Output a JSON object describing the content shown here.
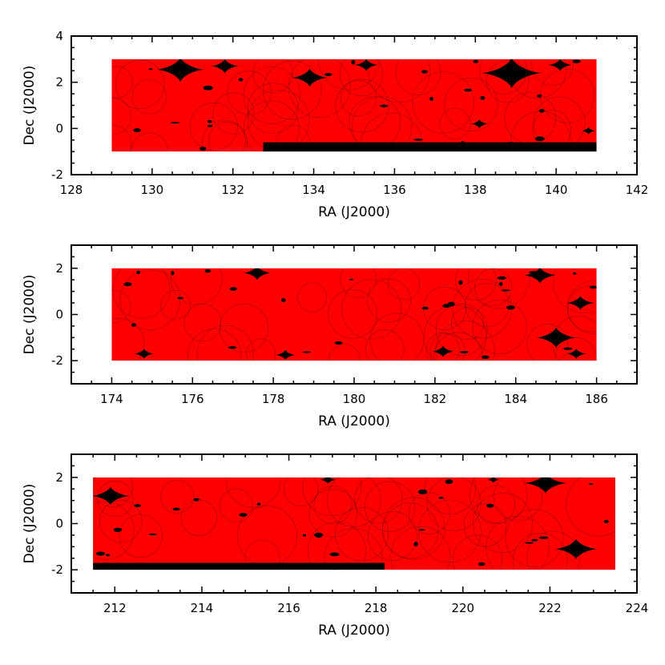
{
  "colors": {
    "coverage": "#ff0000",
    "gap": "#000000",
    "frame": "#000000",
    "background": "#ffffff"
  },
  "chart_data": [
    {
      "type": "scatter",
      "xlabel": "RA (J2000)",
      "ylabel": "Dec (J2000)",
      "xlim": [
        128,
        142
      ],
      "ylim": [
        -2,
        4
      ],
      "xticks": [
        128,
        130,
        132,
        134,
        136,
        138,
        140,
        142
      ],
      "yticks": [
        -2,
        0,
        2,
        4
      ],
      "field": {
        "ra": [
          129,
          141
        ],
        "dec": [
          -1,
          3
        ]
      },
      "gap_strips": [
        {
          "ra": [
            132.75,
            141
          ],
          "dec": [
            -1,
            -0.6
          ]
        }
      ],
      "gap_holes": [
        {
          "ra": 130.7,
          "dec": 2.55,
          "r": 0.6
        },
        {
          "ra": 131.8,
          "dec": 2.7,
          "r": 0.35
        },
        {
          "ra": 133.9,
          "dec": 2.2,
          "r": 0.45
        },
        {
          "ra": 135.3,
          "dec": 2.75,
          "r": 0.3
        },
        {
          "ra": 138.9,
          "dec": 2.4,
          "r": 0.75
        },
        {
          "ra": 140.1,
          "dec": 2.75,
          "r": 0.3
        },
        {
          "ra": 138.1,
          "dec": 0.2,
          "r": 0.22
        },
        {
          "ra": 140.8,
          "dec": -0.1,
          "r": 0.18
        }
      ]
    },
    {
      "type": "scatter",
      "xlabel": "RA (J2000)",
      "ylabel": "Dec (J2000)",
      "xlim": [
        173,
        187
      ],
      "ylim": [
        -3,
        3
      ],
      "xticks": [
        174,
        176,
        178,
        180,
        182,
        184,
        186
      ],
      "yticks": [
        -2,
        0,
        2
      ],
      "field": {
        "ra": [
          174,
          186
        ],
        "dec": [
          -2,
          2
        ]
      },
      "gap_strips": [],
      "gap_holes": [
        {
          "ra": 177.6,
          "dec": 1.8,
          "r": 0.35
        },
        {
          "ra": 184.6,
          "dec": 1.7,
          "r": 0.4
        },
        {
          "ra": 185.6,
          "dec": 0.5,
          "r": 0.35
        },
        {
          "ra": 185.0,
          "dec": -1.0,
          "r": 0.5
        },
        {
          "ra": 174.8,
          "dec": -1.7,
          "r": 0.25
        },
        {
          "ra": 178.3,
          "dec": -1.75,
          "r": 0.25
        },
        {
          "ra": 182.2,
          "dec": -1.6,
          "r": 0.28
        },
        {
          "ra": 185.5,
          "dec": -1.7,
          "r": 0.25
        }
      ]
    },
    {
      "type": "scatter",
      "xlabel": "RA (J2000)",
      "ylabel": "Dec (J2000)",
      "xlim": [
        211,
        224
      ],
      "ylim": [
        -3,
        3
      ],
      "xticks": [
        212,
        214,
        216,
        218,
        220,
        222,
        224
      ],
      "yticks": [
        -2,
        0,
        2
      ],
      "field": {
        "ra": [
          211.5,
          223.5
        ],
        "dec": [
          -2,
          2
        ]
      },
      "gap_strips": [
        {
          "ra": [
            211.5,
            218.2
          ],
          "dec": [
            -2,
            -1.7
          ]
        }
      ],
      "gap_holes": [
        {
          "ra": 211.9,
          "dec": 1.2,
          "r": 0.45
        },
        {
          "ra": 221.9,
          "dec": 1.75,
          "r": 0.5
        },
        {
          "ra": 222.6,
          "dec": -1.1,
          "r": 0.5
        },
        {
          "ra": 216.9,
          "dec": 1.9,
          "r": 0.2
        },
        {
          "ra": 220.7,
          "dec": 1.9,
          "r": 0.15
        }
      ]
    }
  ]
}
